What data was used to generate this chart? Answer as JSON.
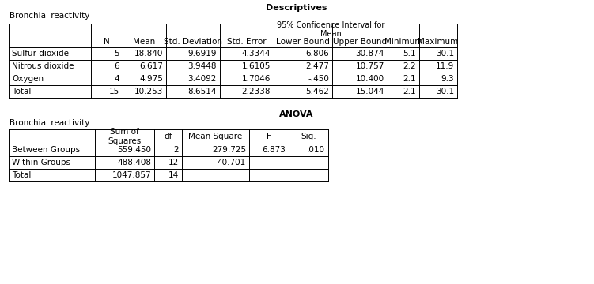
{
  "title1": "Descriptives",
  "title2": "ANOVA",
  "subtitle1": "Bronchial reactivity",
  "subtitle2": "Bronchial reactivity",
  "desc_rows": [
    [
      "Sulfur dioxide",
      "5",
      "18.840",
      "9.6919",
      "4.3344",
      "6.806",
      "30.874",
      "5.1",
      "30.1"
    ],
    [
      "Nitrous dioxide",
      "6",
      "6.617",
      "3.9448",
      "1.6105",
      "2.477",
      "10.757",
      "2.2",
      "11.9"
    ],
    [
      "Oxygen",
      "4",
      "4.975",
      "3.4092",
      "1.7046",
      "-.450",
      "10.400",
      "2.1",
      "9.3"
    ],
    [
      "Total",
      "15",
      "10.253",
      "8.6514",
      "2.2338",
      "5.462",
      "15.044",
      "2.1",
      "30.1"
    ]
  ],
  "anova_rows": [
    [
      "Between Groups",
      "559.450",
      "2",
      "279.725",
      "6.873",
      ".010"
    ],
    [
      "Within Groups",
      "488.408",
      "12",
      "40.701",
      "",
      ""
    ],
    [
      "Total",
      "1047.857",
      "14",
      "",
      "",
      ""
    ]
  ],
  "bg_color": "#ffffff",
  "text_color": "#000000",
  "line_color": "#000000",
  "font_size": 7.5
}
